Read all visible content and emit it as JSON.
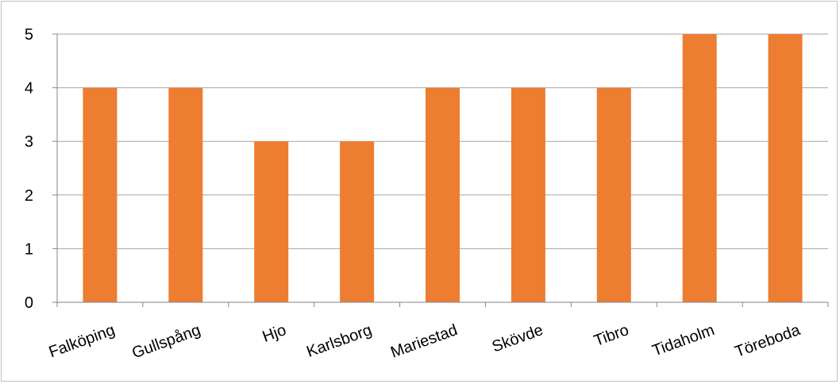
{
  "chart_data": {
    "type": "bar",
    "title": "",
    "xlabel": "",
    "ylabel": "",
    "categories": [
      "Falköping",
      "Gullspång",
      "Hjo",
      "Karlsborg",
      "Mariestad",
      "Skövde",
      "Tibro",
      "Tidaholm",
      "Töreboda"
    ],
    "values": [
      4,
      4,
      3,
      3,
      4,
      4,
      4,
      5,
      5
    ],
    "ylim": [
      0,
      5
    ],
    "yticks": [
      "0",
      "1",
      "2",
      "3",
      "4",
      "5"
    ],
    "grid": true,
    "legend": "none",
    "bar_color": "#ED7D31",
    "grid_color": "#A6A6A6"
  }
}
